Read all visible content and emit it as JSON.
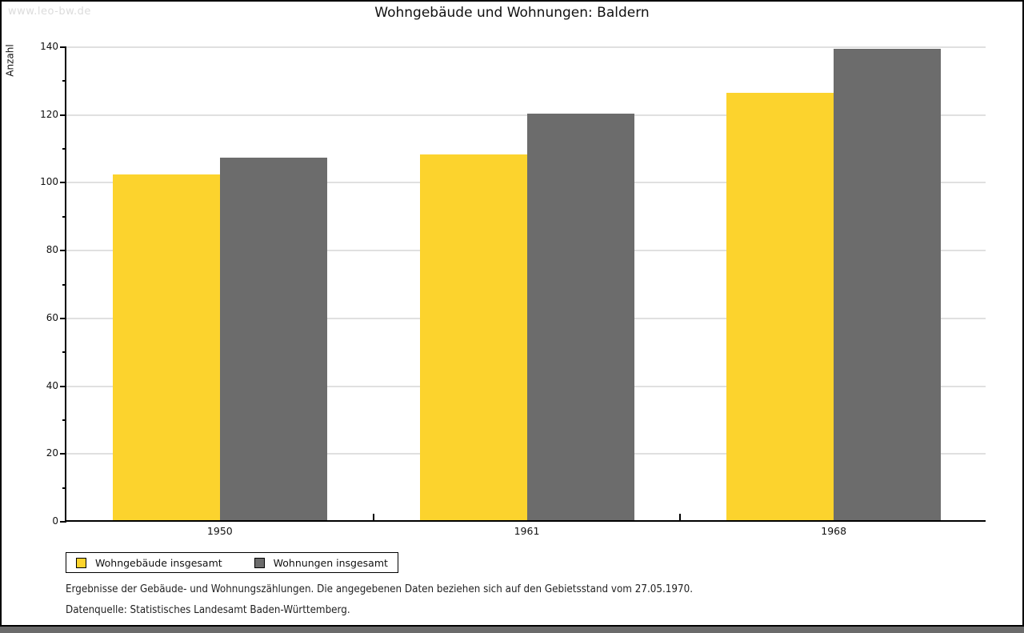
{
  "watermark": "www.leo-bw.de",
  "header": {
    "title": "Wohngebäude und Wohnungen: Baldern"
  },
  "chart_data": {
    "type": "bar",
    "title": "Wohngebäude und Wohnungen: Baldern",
    "categories": [
      "1950",
      "1961",
      "1968"
    ],
    "series": [
      {
        "name": "Wohngebäude insgesamt",
        "color": "#fcd32d",
        "values": [
          102,
          108,
          126
        ]
      },
      {
        "name": "Wohnungen insgesamt",
        "color": "#6c6c6c",
        "values": [
          107,
          120,
          139
        ]
      }
    ],
    "xlabel": "",
    "ylabel": "Anzahl",
    "ylim": [
      0,
      140
    ],
    "yticks": [
      0,
      20,
      40,
      60,
      80,
      100,
      120,
      140
    ],
    "minor_yticks": [
      10,
      30,
      50,
      70,
      90,
      110,
      130
    ],
    "grid": "horizontal",
    "legend_position": "bottom-left"
  },
  "footer": {
    "line1": "Ergebnisse der Gebäude- und Wohnungszählungen. Die angegebenen Daten beziehen sich auf den Gebietsstand vom 27.05.1970.",
    "line2": "Datenquelle: Statistisches Landesamt Baden-Württemberg."
  },
  "colors": {
    "series1": "#fcd32d",
    "series2": "#6c6c6c",
    "gridline": "#e0e0e0",
    "axis": "#000000",
    "watermark": "#dcdcdc",
    "bottom_strip": "#6b6b6b"
  }
}
